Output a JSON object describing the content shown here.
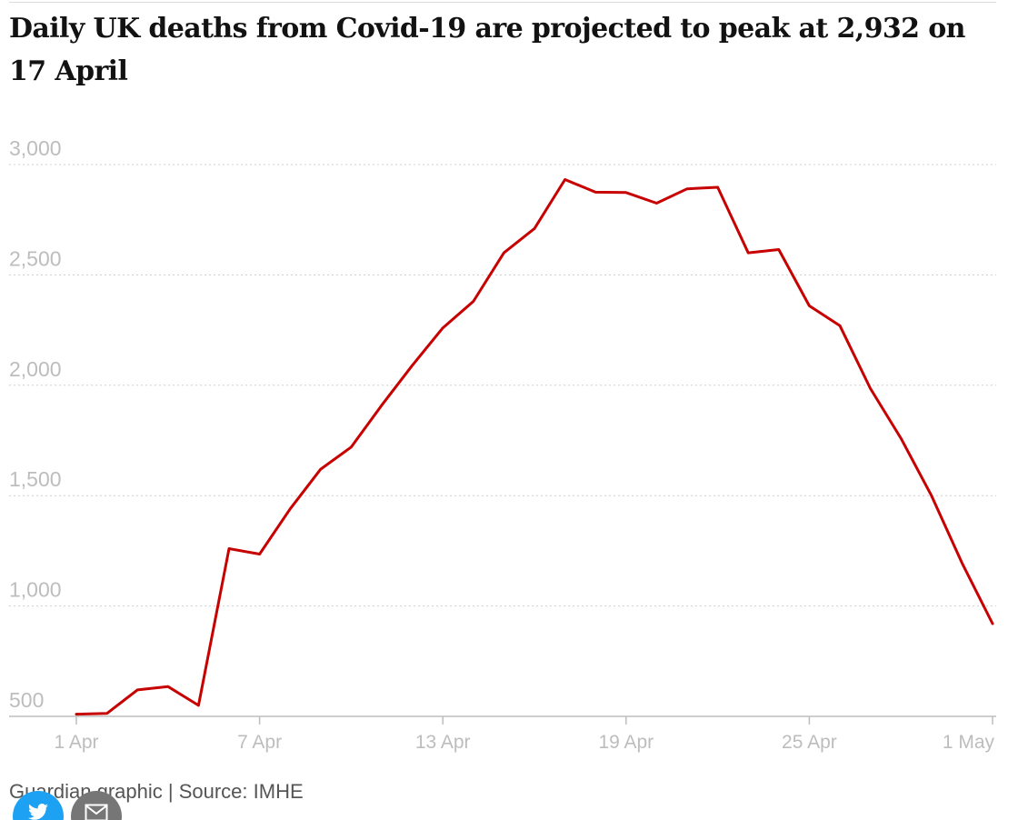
{
  "title": "Daily UK deaths from Covid-19 are projected to peak at 2,932 on 17 April",
  "source": "Guardian graphic | Source: IMHE",
  "share": {
    "twitter_icon": "twitter-icon",
    "email_icon": "email-icon"
  },
  "colors": {
    "series": "#c70000",
    "twitter": "#1da1f2",
    "email": "#767676"
  },
  "chart_data": {
    "type": "line",
    "title": "Daily UK deaths from Covid-19 are projected to peak at 2,932 on 17 April",
    "xlabel": "",
    "ylabel": "",
    "ylim": [
      500,
      3000
    ],
    "xlim": [
      "2020-04-01",
      "2020-05-01"
    ],
    "grid": true,
    "yticks": [
      {
        "value": 500,
        "label": "500"
      },
      {
        "value": 1000,
        "label": "1,000"
      },
      {
        "value": 1500,
        "label": "1,500"
      },
      {
        "value": 2000,
        "label": "2,000"
      },
      {
        "value": 2500,
        "label": "2,500"
      },
      {
        "value": 3000,
        "label": "3,000"
      }
    ],
    "xticks": [
      {
        "date": "2020-04-01",
        "label": "1 Apr"
      },
      {
        "date": "2020-04-07",
        "label": "7 Apr"
      },
      {
        "date": "2020-04-13",
        "label": "13 Apr"
      },
      {
        "date": "2020-04-19",
        "label": "19 Apr"
      },
      {
        "date": "2020-04-25",
        "label": "25 Apr"
      },
      {
        "date": "2020-05-01",
        "label": "1 May"
      }
    ],
    "series": [
      {
        "x": [
          "2020-04-01",
          "2020-04-02",
          "2020-04-03",
          "2020-04-04",
          "2020-04-05",
          "2020-04-06",
          "2020-04-07",
          "2020-04-08",
          "2020-04-09",
          "2020-04-10",
          "2020-04-11",
          "2020-04-12",
          "2020-04-13",
          "2020-04-14",
          "2020-04-15",
          "2020-04-16",
          "2020-04-17",
          "2020-04-18",
          "2020-04-19",
          "2020-04-20",
          "2020-04-21",
          "2020-04-22",
          "2020-04-23",
          "2020-04-24",
          "2020-04-25",
          "2020-04-26",
          "2020-04-27",
          "2020-04-28",
          "2020-04-29",
          "2020-04-30",
          "2020-05-01"
        ],
        "values": [
          510,
          513,
          620,
          635,
          550,
          1260,
          1235,
          1440,
          1620,
          1720,
          1910,
          2090,
          2260,
          2380,
          2600,
          2710,
          2932,
          2875,
          2873,
          2825,
          2890,
          2897,
          2600,
          2615,
          2360,
          2270,
          1985,
          1760,
          1500,
          1195,
          920
        ]
      }
    ]
  }
}
